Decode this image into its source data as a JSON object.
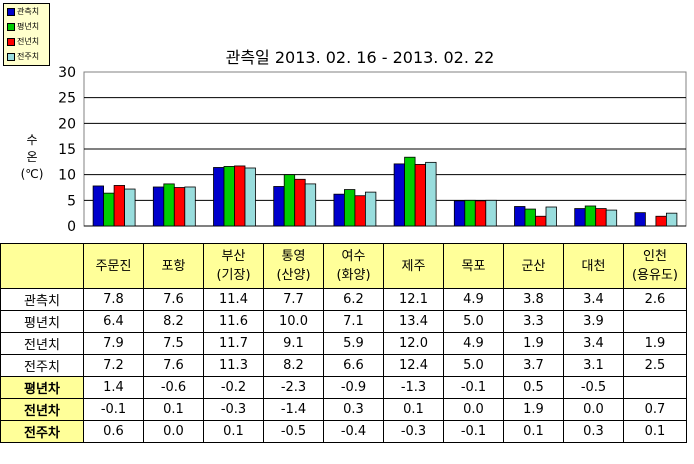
{
  "title": "관측일 2013. 02. 16 -  2013. 02. 22",
  "ylabel_line1": "수",
  "ylabel_line2": "온",
  "ylabel_line3": "(℃)",
  "legend": [
    {
      "name": "관측치",
      "color": "#0000cc"
    },
    {
      "name": "평년치",
      "color": "#00cc00"
    },
    {
      "name": "전년치",
      "color": "#ff0000"
    },
    {
      "name": "전주치",
      "color": "#99dddd"
    }
  ],
  "chart_data": {
    "type": "bar",
    "title": "관측일 2013. 02. 16 -  2013. 02. 22",
    "ylabel": "수온(℃)",
    "ylim": [
      0,
      30
    ],
    "yticks": [
      0,
      5,
      10,
      15,
      20,
      25,
      30
    ],
    "grid": true,
    "legend_position": "top-left",
    "categories": [
      "주문진",
      "포항",
      "부산(기장)",
      "통영(산양)",
      "여수(화양)",
      "제주",
      "목포",
      "군산",
      "대천",
      "인천(용유도)"
    ],
    "series": [
      {
        "name": "관측치",
        "color": "#0000cc",
        "values": [
          7.8,
          7.6,
          11.4,
          7.7,
          6.2,
          12.1,
          4.9,
          3.8,
          3.4,
          2.6
        ]
      },
      {
        "name": "평년치",
        "color": "#00cc00",
        "values": [
          6.4,
          8.2,
          11.6,
          10.0,
          7.1,
          13.4,
          5.0,
          3.3,
          3.9,
          null
        ]
      },
      {
        "name": "전년치",
        "color": "#ff0000",
        "values": [
          7.9,
          7.5,
          11.7,
          9.1,
          5.9,
          12.0,
          4.9,
          1.9,
          3.4,
          1.9
        ]
      },
      {
        "name": "전주치",
        "color": "#99dddd",
        "values": [
          7.2,
          7.6,
          11.3,
          8.2,
          6.6,
          12.4,
          5.0,
          3.7,
          3.1,
          2.5
        ]
      }
    ]
  },
  "table": {
    "header_line1": [
      "주문진",
      "포항",
      "부산",
      "통영",
      "여수",
      "제주",
      "목포",
      "군산",
      "대천",
      "인천"
    ],
    "header_line2": [
      "",
      "",
      "(기장)",
      "(산양)",
      "(화양)",
      "",
      "",
      "",
      "",
      "(용유도)"
    ],
    "rows": [
      {
        "label": "관측치",
        "bold": false,
        "values": [
          "7.8",
          "7.6",
          "11.4",
          "7.7",
          "6.2",
          "12.1",
          "4.9",
          "3.8",
          "3.4",
          "2.6"
        ]
      },
      {
        "label": "평년치",
        "bold": false,
        "values": [
          "6.4",
          "8.2",
          "11.6",
          "10.0",
          "7.1",
          "13.4",
          "5.0",
          "3.3",
          "3.9",
          ""
        ]
      },
      {
        "label": "전년치",
        "bold": false,
        "values": [
          "7.9",
          "7.5",
          "11.7",
          "9.1",
          "5.9",
          "12.0",
          "4.9",
          "1.9",
          "3.4",
          "1.9"
        ]
      },
      {
        "label": "전주치",
        "bold": false,
        "values": [
          "7.2",
          "7.6",
          "11.3",
          "8.2",
          "6.6",
          "12.4",
          "5.0",
          "3.7",
          "3.1",
          "2.5"
        ]
      },
      {
        "label": "평년차",
        "bold": true,
        "values": [
          "1.4",
          "-0.6",
          "-0.2",
          "-2.3",
          "-0.9",
          "-1.3",
          "-0.1",
          "0.5",
          "-0.5",
          ""
        ]
      },
      {
        "label": "전년차",
        "bold": true,
        "values": [
          "-0.1",
          "0.1",
          "-0.3",
          "-1.4",
          "0.3",
          "0.1",
          "0.0",
          "1.9",
          "0.0",
          "0.7"
        ]
      },
      {
        "label": "전주차",
        "bold": true,
        "values": [
          "0.6",
          "0.0",
          "0.1",
          "-0.5",
          "-0.4",
          "-0.3",
          "-0.1",
          "0.1",
          "0.3",
          "0.1"
        ]
      }
    ]
  }
}
